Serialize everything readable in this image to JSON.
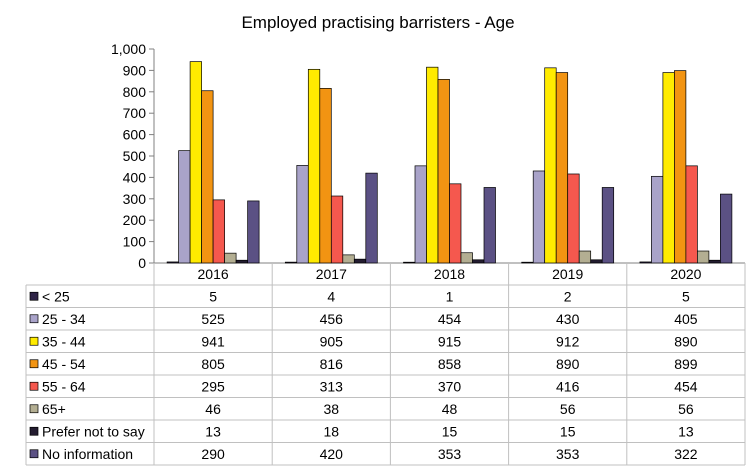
{
  "chart_data": {
    "type": "bar",
    "title": "Employed practising barristers - Age",
    "categories": [
      "2016",
      "2017",
      "2018",
      "2019",
      "2020"
    ],
    "yticks": [
      "0",
      "100",
      "200",
      "300",
      "400",
      "500",
      "600",
      "700",
      "800",
      "900",
      "1,000"
    ],
    "ylim": [
      0,
      1000
    ],
    "grid": false,
    "legend": "data-table",
    "series": [
      {
        "name": "< 25",
        "color": "#2e2346",
        "values": [
          5,
          4,
          1,
          2,
          5
        ]
      },
      {
        "name": "25 - 34",
        "color": "#a9a3c9",
        "values": [
          525,
          456,
          454,
          430,
          405
        ]
      },
      {
        "name": "35 - 44",
        "color": "#ffeb00",
        "values": [
          941,
          905,
          915,
          912,
          890
        ]
      },
      {
        "name": "45 - 54",
        "color": "#f29412",
        "values": [
          805,
          816,
          858,
          890,
          899
        ]
      },
      {
        "name": "55 - 64",
        "color": "#f5584e",
        "values": [
          295,
          313,
          370,
          416,
          454
        ]
      },
      {
        "name": "65+",
        "color": "#b3ae92",
        "values": [
          46,
          38,
          48,
          56,
          56
        ]
      },
      {
        "name": "Prefer not to say",
        "color": "#231c30",
        "values": [
          13,
          18,
          15,
          15,
          13
        ]
      },
      {
        "name": "No information",
        "color": "#5b5184",
        "values": [
          290,
          420,
          353,
          353,
          322
        ]
      }
    ]
  }
}
